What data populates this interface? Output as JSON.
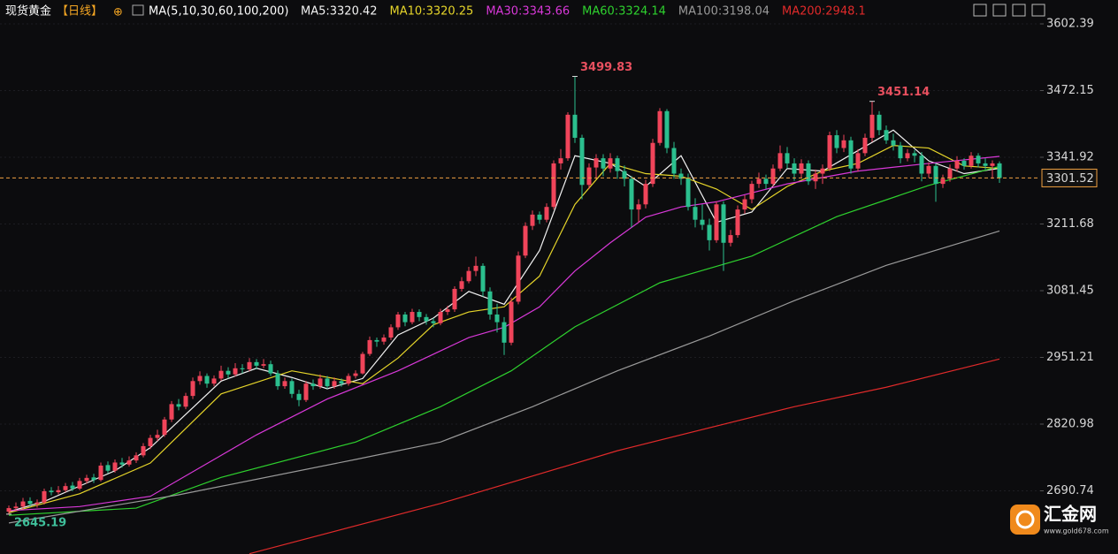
{
  "chart_data": {
    "type": "candlestick",
    "title": "现货黄金",
    "subtitle": "【日线】",
    "indicator": "MA(5,10,30,60,100,200)",
    "watermark": {
      "brand": "汇金网",
      "url": "www.gold678.com"
    },
    "up_color": "#f0445a",
    "down_color": "#2bbf8e",
    "ylim": [
      2567.4,
      3649.0
    ],
    "yticks": [
      3602.39,
      3472.15,
      3341.92,
      3211.68,
      3081.45,
      2951.21,
      2820.98,
      2690.74
    ],
    "grid": true,
    "last_price": 3301.52,
    "annotations": [
      {
        "index": 80,
        "value": 3499.83
      },
      {
        "index": 122,
        "value": 3451.14
      },
      {
        "index": 0,
        "value": 2645.19
      }
    ],
    "ohlc": [
      [
        2650,
        2662,
        2645.19,
        2657
      ],
      [
        2657,
        2668,
        2652,
        2660
      ],
      [
        2660,
        2677,
        2655,
        2670
      ],
      [
        2671,
        2678,
        2660,
        2665
      ],
      [
        2665,
        2674,
        2658,
        2668
      ],
      [
        2668,
        2695,
        2664,
        2690
      ],
      [
        2691,
        2698,
        2682,
        2688
      ],
      [
        2688,
        2700,
        2684,
        2692
      ],
      [
        2692,
        2706,
        2688,
        2700
      ],
      [
        2701,
        2708,
        2690,
        2695
      ],
      [
        2695,
        2716,
        2692,
        2710
      ],
      [
        2710,
        2722,
        2705,
        2716
      ],
      [
        2717,
        2724,
        2706,
        2712
      ],
      [
        2712,
        2746,
        2709,
        2740
      ],
      [
        2741,
        2748,
        2725,
        2730
      ],
      [
        2730,
        2752,
        2726,
        2746
      ],
      [
        2746,
        2755,
        2736,
        2742
      ],
      [
        2742,
        2758,
        2738,
        2750
      ],
      [
        2750,
        2766,
        2745,
        2760
      ],
      [
        2760,
        2784,
        2756,
        2778
      ],
      [
        2778,
        2800,
        2772,
        2794
      ],
      [
        2794,
        2810,
        2788,
        2800
      ],
      [
        2800,
        2835,
        2796,
        2830
      ],
      [
        2830,
        2866,
        2825,
        2860
      ],
      [
        2860,
        2870,
        2848,
        2855
      ],
      [
        2855,
        2882,
        2850,
        2876
      ],
      [
        2876,
        2912,
        2870,
        2905
      ],
      [
        2905,
        2924,
        2898,
        2915
      ],
      [
        2915,
        2920,
        2892,
        2900
      ],
      [
        2900,
        2916,
        2895,
        2910
      ],
      [
        2910,
        2935,
        2906,
        2925
      ],
      [
        2925,
        2932,
        2910,
        2918
      ],
      [
        2918,
        2940,
        2914,
        2930
      ],
      [
        2930,
        2938,
        2920,
        2928
      ],
      [
        2928,
        2950,
        2924,
        2942
      ],
      [
        2942,
        2948,
        2928,
        2935
      ],
      [
        2935,
        2948,
        2930,
        2938
      ],
      [
        2938,
        2945,
        2915,
        2920
      ],
      [
        2920,
        2926,
        2888,
        2895
      ],
      [
        2895,
        2912,
        2890,
        2905
      ],
      [
        2905,
        2910,
        2872,
        2880
      ],
      [
        2880,
        2888,
        2856,
        2868
      ],
      [
        2868,
        2905,
        2864,
        2900
      ],
      [
        2900,
        2908,
        2888,
        2895
      ],
      [
        2895,
        2918,
        2890,
        2910
      ],
      [
        2910,
        2915,
        2890,
        2895
      ],
      [
        2895,
        2912,
        2890,
        2905
      ],
      [
        2905,
        2910,
        2894,
        2900
      ],
      [
        2900,
        2920,
        2896,
        2915
      ],
      [
        2915,
        2926,
        2910,
        2920
      ],
      [
        2920,
        2962,
        2918,
        2958
      ],
      [
        2958,
        2992,
        2954,
        2985
      ],
      [
        2985,
        2990,
        2972,
        2982
      ],
      [
        2982,
        2996,
        2976,
        2990
      ],
      [
        2990,
        3016,
        2985,
        3010
      ],
      [
        3010,
        3040,
        3005,
        3035
      ],
      [
        3035,
        3040,
        3012,
        3020
      ],
      [
        3020,
        3046,
        3016,
        3040
      ],
      [
        3040,
        3045,
        3022,
        3030
      ],
      [
        3030,
        3036,
        3015,
        3022
      ],
      [
        3022,
        3028,
        3010,
        3018
      ],
      [
        3018,
        3046,
        3014,
        3040
      ],
      [
        3040,
        3052,
        3034,
        3045
      ],
      [
        3045,
        3090,
        3040,
        3085
      ],
      [
        3085,
        3108,
        3080,
        3100
      ],
      [
        3100,
        3128,
        3096,
        3120
      ],
      [
        3120,
        3148,
        3110,
        3130
      ],
      [
        3130,
        3135,
        3070,
        3080
      ],
      [
        3080,
        3088,
        3025,
        3035
      ],
      [
        3035,
        3056,
        3000,
        3020
      ],
      [
        3020,
        3030,
        2956,
        2980
      ],
      [
        2980,
        3068,
        2975,
        3060
      ],
      [
        3060,
        3158,
        3055,
        3150
      ],
      [
        3150,
        3215,
        3145,
        3208
      ],
      [
        3208,
        3238,
        3200,
        3230
      ],
      [
        3230,
        3236,
        3212,
        3220
      ],
      [
        3220,
        3252,
        3215,
        3245
      ],
      [
        3245,
        3336,
        3240,
        3330
      ],
      [
        3330,
        3358,
        3318,
        3340
      ],
      [
        3340,
        3430,
        3335,
        3425
      ],
      [
        3425,
        3499.83,
        3370,
        3380
      ],
      [
        3380,
        3386,
        3260,
        3288
      ],
      [
        3288,
        3330,
        3280,
        3322
      ],
      [
        3322,
        3348,
        3300,
        3340
      ],
      [
        3340,
        3348,
        3305,
        3320
      ],
      [
        3320,
        3350,
        3312,
        3340
      ],
      [
        3340,
        3345,
        3300,
        3315
      ],
      [
        3315,
        3326,
        3285,
        3300
      ],
      [
        3300,
        3305,
        3205,
        3240
      ],
      [
        3240,
        3260,
        3215,
        3250
      ],
      [
        3250,
        3298,
        3242,
        3290
      ],
      [
        3290,
        3378,
        3284,
        3370
      ],
      [
        3370,
        3438,
        3365,
        3432
      ],
      [
        3432,
        3436,
        3350,
        3360
      ],
      [
        3360,
        3372,
        3300,
        3310
      ],
      [
        3310,
        3320,
        3288,
        3300
      ],
      [
        3300,
        3310,
        3238,
        3245
      ],
      [
        3245,
        3262,
        3205,
        3220
      ],
      [
        3220,
        3250,
        3200,
        3210
      ],
      [
        3210,
        3222,
        3160,
        3180
      ],
      [
        3180,
        3256,
        3175,
        3250
      ],
      [
        3250,
        3256,
        3120,
        3175
      ],
      [
        3175,
        3200,
        3168,
        3190
      ],
      [
        3190,
        3248,
        3185,
        3240
      ],
      [
        3240,
        3268,
        3232,
        3260
      ],
      [
        3260,
        3296,
        3252,
        3290
      ],
      [
        3290,
        3312,
        3282,
        3300
      ],
      [
        3300,
        3308,
        3280,
        3290
      ],
      [
        3290,
        3328,
        3285,
        3320
      ],
      [
        3320,
        3365,
        3315,
        3350
      ],
      [
        3350,
        3362,
        3320,
        3330
      ],
      [
        3330,
        3340,
        3296,
        3310
      ],
      [
        3310,
        3338,
        3302,
        3330
      ],
      [
        3330,
        3336,
        3288,
        3295
      ],
      [
        3295,
        3318,
        3280,
        3310
      ],
      [
        3310,
        3328,
        3290,
        3320
      ],
      [
        3320,
        3392,
        3315,
        3385
      ],
      [
        3385,
        3395,
        3350,
        3360
      ],
      [
        3360,
        3386,
        3352,
        3375
      ],
      [
        3375,
        3382,
        3310,
        3320
      ],
      [
        3320,
        3358,
        3314,
        3350
      ],
      [
        3350,
        3388,
        3344,
        3380
      ],
      [
        3380,
        3451.14,
        3372,
        3425
      ],
      [
        3425,
        3432,
        3385,
        3395
      ],
      [
        3395,
        3404,
        3368,
        3375
      ],
      [
        3375,
        3388,
        3355,
        3365
      ],
      [
        3365,
        3372,
        3330,
        3340
      ],
      [
        3340,
        3358,
        3334,
        3350
      ],
      [
        3350,
        3356,
        3332,
        3345
      ],
      [
        3345,
        3352,
        3295,
        3310
      ],
      [
        3310,
        3332,
        3302,
        3325
      ],
      [
        3325,
        3330,
        3255,
        3290
      ],
      [
        3290,
        3308,
        3282,
        3300
      ],
      [
        3300,
        3328,
        3294,
        3320
      ],
      [
        3320,
        3344,
        3314,
        3335
      ],
      [
        3335,
        3340,
        3318,
        3325
      ],
      [
        3325,
        3352,
        3320,
        3345
      ],
      [
        3345,
        3350,
        3322,
        3330
      ],
      [
        3330,
        3340,
        3318,
        3325
      ],
      [
        3325,
        3336,
        3300,
        3330
      ],
      [
        3330,
        3334,
        3292,
        3301.52
      ]
    ],
    "series": [
      {
        "name": "MA5:3320.42",
        "color": "#f2f2f2",
        "x": [
          0,
          5,
          10,
          15,
          20,
          25,
          30,
          35,
          40,
          45,
          50,
          55,
          60,
          65,
          70,
          75,
          80,
          85,
          90,
          95,
          100,
          105,
          110,
          115,
          120,
          125,
          130,
          135,
          140
        ],
        "values": [
          2650,
          2670,
          2700,
          2730,
          2775,
          2840,
          2905,
          2930,
          2912,
          2890,
          2910,
          2995,
          3028,
          3080,
          3055,
          3160,
          3345,
          3330,
          3285,
          3345,
          3215,
          3235,
          3320,
          3315,
          3355,
          3395,
          3335,
          3310,
          3320.42
        ]
      },
      {
        "name": "MA10:3320.25",
        "color": "#e6d52a",
        "x": [
          0,
          10,
          20,
          30,
          40,
          50,
          55,
          60,
          65,
          70,
          75,
          80,
          85,
          90,
          95,
          100,
          105,
          110,
          115,
          120,
          125,
          130,
          135,
          140
        ],
        "values": [
          2648,
          2685,
          2745,
          2880,
          2925,
          2900,
          2950,
          3015,
          3040,
          3050,
          3110,
          3250,
          3330,
          3310,
          3305,
          3280,
          3240,
          3285,
          3315,
          3330,
          3365,
          3360,
          3325,
          3320.25
        ]
      },
      {
        "name": "MA30:3343.66",
        "color": "#d838d8",
        "x": [
          0,
          10,
          20,
          30,
          35,
          45,
          55,
          65,
          70,
          75,
          80,
          85,
          90,
          95,
          100,
          110,
          120,
          130,
          140
        ],
        "values": [
          2652,
          2660,
          2680,
          2760,
          2800,
          2870,
          2925,
          2990,
          3010,
          3050,
          3120,
          3175,
          3225,
          3245,
          3255,
          3290,
          3315,
          3330,
          3343.66
        ]
      },
      {
        "name": "MA60:3324.14",
        "color": "#2ed12e",
        "x": [
          0,
          18,
          30,
          49,
          61,
          71,
          80,
          92,
          105,
          117,
          130,
          140
        ],
        "values": [
          2643,
          2657,
          2717,
          2786,
          2855,
          2925,
          3011,
          3097,
          3149,
          3226,
          3287,
          3324.14
        ]
      },
      {
        "name": "MA100:3198.04",
        "color": "#9a9a9a",
        "x": [
          0,
          24,
          49,
          61,
          74,
          86,
          99,
          111,
          124,
          140
        ],
        "values": [
          2628,
          2683,
          2752,
          2786,
          2855,
          2925,
          2993,
          3062,
          3131,
          3198.04
        ]
      },
      {
        "name": "MA200:2948.1",
        "color": "#e02a2a",
        "x": [
          34,
          61,
          86,
          111,
          124,
          140
        ],
        "values": [
          2568,
          2666,
          2769,
          2855,
          2893,
          2948.1
        ]
      }
    ]
  }
}
